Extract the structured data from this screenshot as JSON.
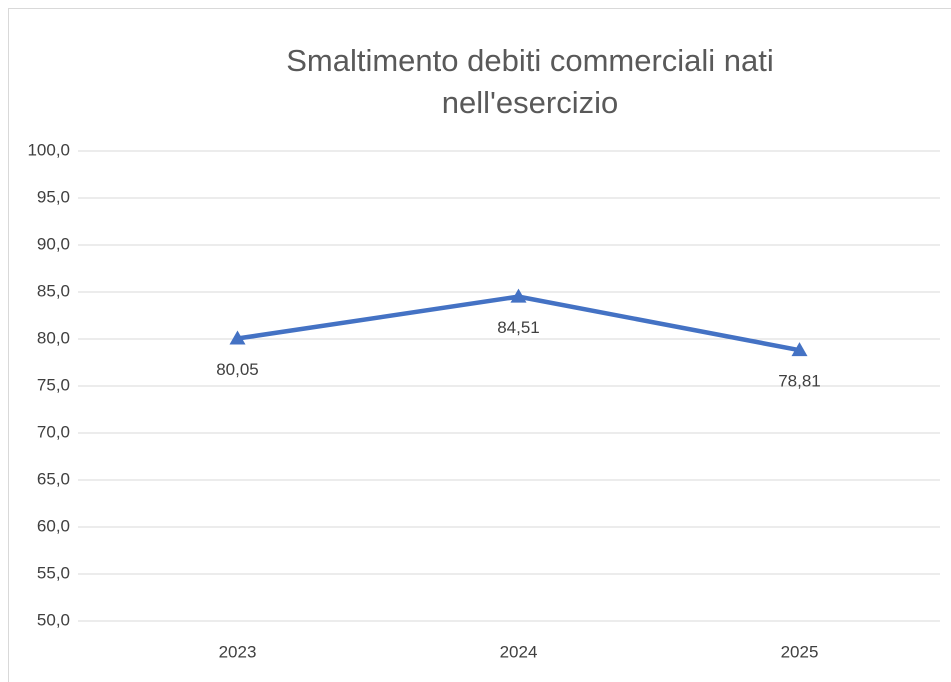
{
  "chart_data": {
    "type": "line",
    "title": "Smaltimento debiti commerciali nati nell'esercizio",
    "categories": [
      "2023",
      "2024",
      "2025"
    ],
    "series": [
      {
        "name": "Smaltimento debiti commerciali nati nell'esercizio",
        "color": "#4472c4",
        "values": [
          80.05,
          84.51,
          78.81
        ],
        "value_labels": [
          "80,05",
          "84,51",
          "78,81"
        ]
      }
    ],
    "ylim": [
      50,
      100
    ],
    "yticks": [
      {
        "value": 50,
        "label": "50,0"
      },
      {
        "value": 55,
        "label": "55,0"
      },
      {
        "value": 60,
        "label": "60,0"
      },
      {
        "value": 65,
        "label": "65,0"
      },
      {
        "value": 70,
        "label": "70,0"
      },
      {
        "value": 75,
        "label": "75,0"
      },
      {
        "value": 80,
        "label": "80,0"
      },
      {
        "value": 85,
        "label": "85,0"
      },
      {
        "value": 90,
        "label": "90,0"
      },
      {
        "value": 95,
        "label": "95,0"
      },
      {
        "value": 100,
        "label": "100,0"
      }
    ],
    "grid": true
  }
}
